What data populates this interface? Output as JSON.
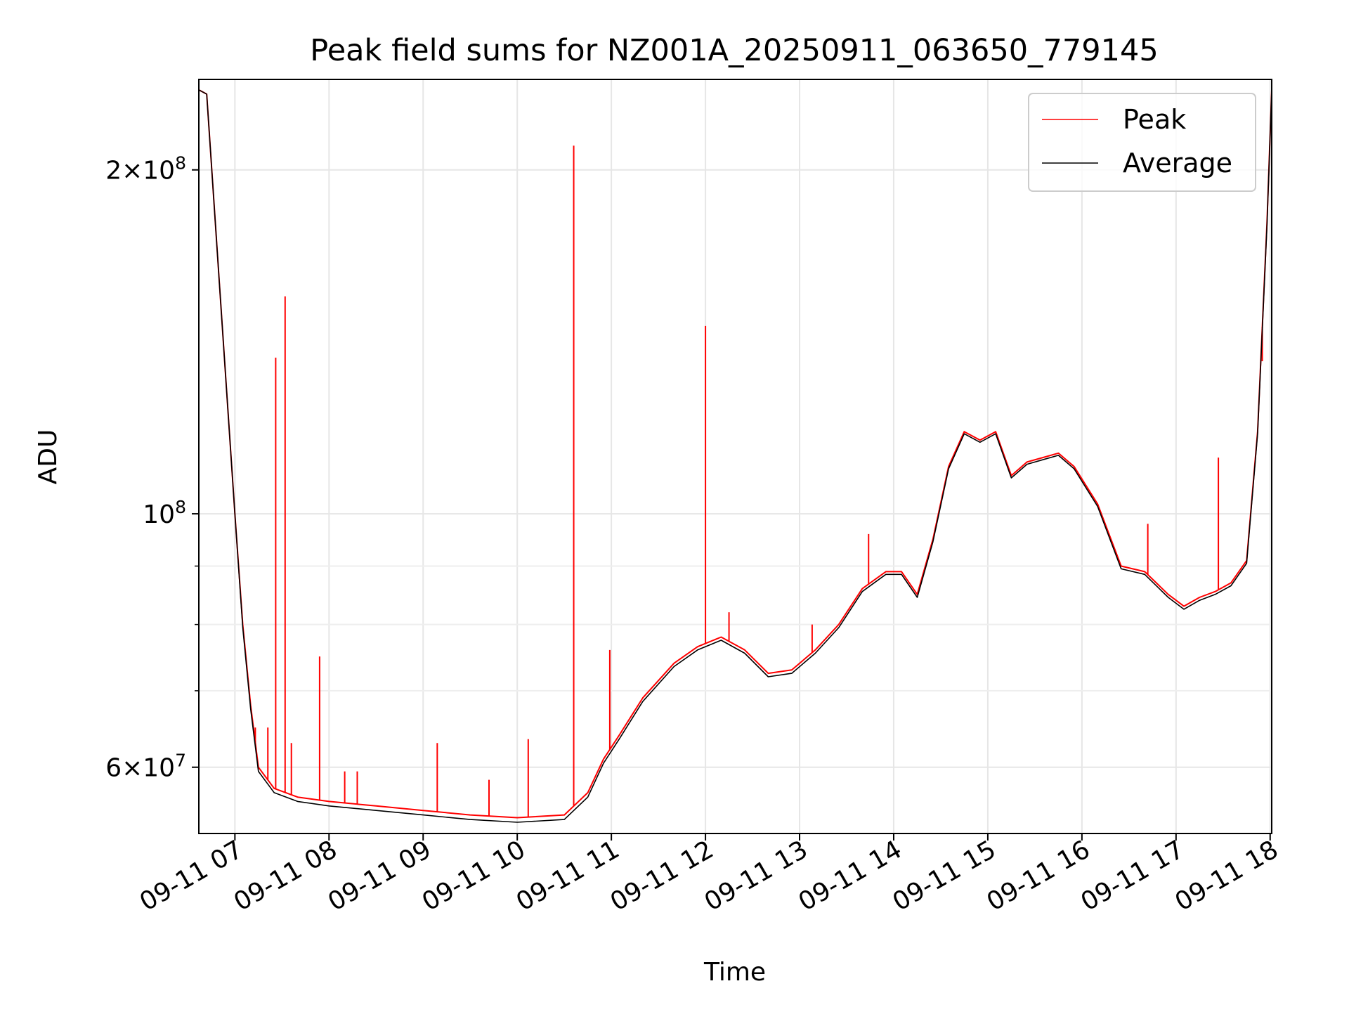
{
  "chart_data": {
    "type": "line",
    "title": "Peak field sums for NZ001A_20250911_063650_779145",
    "xlabel": "Time",
    "ylabel": "ADU",
    "yscale": "log",
    "grid": true,
    "legend_position": "upper-right",
    "xlim": [
      "09-11 06:37",
      "09-11 18:01"
    ],
    "ylim": [
      52500000,
      240000000
    ],
    "x_ticks": [
      "09-11 07",
      "09-11 08",
      "09-11 09",
      "09-11 10",
      "09-11 11",
      "09-11 12",
      "09-11 13",
      "09-11 14",
      "09-11 15",
      "09-11 16",
      "09-11 17",
      "09-11 18"
    ],
    "y_major_ticks": [
      {
        "value": 60000000,
        "mantissa": "6",
        "exponent": "7"
      },
      {
        "value": 100000000,
        "mantissa": "",
        "exponent": "8"
      },
      {
        "value": 200000000,
        "mantissa": "2",
        "exponent": "8"
      }
    ],
    "y_minor_ticks": [
      70000000,
      80000000,
      90000000
    ],
    "series": [
      {
        "name": "Peak",
        "color": "#ff0000",
        "x": [
          "06:37",
          "06:42",
          "06:50",
          "07:00",
          "07:05",
          "07:10",
          "07:15",
          "07:25",
          "07:40",
          "08:00",
          "08:30",
          "09:00",
          "09:30",
          "10:00",
          "10:30",
          "10:45",
          "10:55",
          "11:05",
          "11:20",
          "11:40",
          "11:55",
          "12:10",
          "12:25",
          "12:40",
          "12:55",
          "13:10",
          "13:25",
          "13:40",
          "13:55",
          "14:05",
          "14:15",
          "14:25",
          "14:35",
          "14:45",
          "14:55",
          "15:05",
          "15:15",
          "15:25",
          "15:35",
          "15:45",
          "15:55",
          "16:10",
          "16:25",
          "16:40",
          "16:55",
          "17:05",
          "17:15",
          "17:25",
          "17:35",
          "17:45",
          "17:52",
          "17:58",
          "18:01"
        ],
        "y": [
          235000000,
          233000000,
          160000000,
          100000000,
          80000000,
          68000000,
          60000000,
          57500000,
          56500000,
          56000000,
          55500000,
          55000000,
          54500000,
          54200000,
          54500000,
          57000000,
          61000000,
          64000000,
          69000000,
          74000000,
          76500000,
          78000000,
          76000000,
          72500000,
          73000000,
          76000000,
          80000000,
          86000000,
          89000000,
          89000000,
          85000000,
          95000000,
          110000000,
          118000000,
          116000000,
          118000000,
          108000000,
          111000000,
          112000000,
          113000000,
          110000000,
          102000000,
          90000000,
          89000000,
          85000000,
          83000000,
          84500000,
          85500000,
          87000000,
          91000000,
          118000000,
          180000000,
          235000000
        ]
      },
      {
        "name": "Average",
        "color": "#000000",
        "x": [
          "06:37",
          "06:42",
          "06:50",
          "07:00",
          "07:05",
          "07:10",
          "07:15",
          "07:25",
          "07:40",
          "08:00",
          "08:30",
          "09:00",
          "09:30",
          "10:00",
          "10:30",
          "10:45",
          "10:55",
          "11:05",
          "11:20",
          "11:40",
          "11:55",
          "12:10",
          "12:25",
          "12:40",
          "12:55",
          "13:10",
          "13:25",
          "13:40",
          "13:55",
          "14:05",
          "14:15",
          "14:25",
          "14:35",
          "14:45",
          "14:55",
          "15:05",
          "15:15",
          "15:25",
          "15:35",
          "15:45",
          "15:55",
          "16:10",
          "16:25",
          "16:40",
          "16:55",
          "17:05",
          "17:15",
          "17:25",
          "17:35",
          "17:45",
          "17:52",
          "17:58",
          "18:01"
        ],
        "y": [
          235000000,
          233000000,
          160000000,
          100000000,
          79500000,
          67500000,
          59500000,
          57000000,
          56000000,
          55500000,
          55000000,
          54500000,
          54000000,
          53700000,
          54000000,
          56500000,
          60500000,
          63500000,
          68500000,
          73500000,
          76000000,
          77500000,
          75500000,
          72000000,
          72500000,
          75500000,
          79500000,
          85500000,
          88500000,
          88500000,
          84500000,
          94500000,
          109500000,
          117500000,
          115500000,
          117500000,
          107500000,
          110500000,
          111500000,
          112500000,
          109500000,
          101500000,
          89500000,
          88500000,
          84500000,
          82500000,
          84000000,
          85000000,
          86500000,
          90500000,
          117500000,
          179000000,
          235000000
        ]
      }
    ],
    "spikes": [
      {
        "x": "07:13",
        "y": 65000000
      },
      {
        "x": "07:21",
        "y": 65000000
      },
      {
        "x": "07:26",
        "y": 137000000
      },
      {
        "x": "07:32",
        "y": 155000000
      },
      {
        "x": "07:36",
        "y": 63000000
      },
      {
        "x": "07:54",
        "y": 75000000
      },
      {
        "x": "08:10",
        "y": 59500000
      },
      {
        "x": "08:18",
        "y": 59500000
      },
      {
        "x": "09:09",
        "y": 63000000
      },
      {
        "x": "09:42",
        "y": 58500000
      },
      {
        "x": "10:07",
        "y": 63500000
      },
      {
        "x": "10:36",
        "y": 210000000
      },
      {
        "x": "10:59",
        "y": 76000000
      },
      {
        "x": "12:00",
        "y": 146000000
      },
      {
        "x": "12:15",
        "y": 82000000
      },
      {
        "x": "13:08",
        "y": 80000000
      },
      {
        "x": "13:44",
        "y": 96000000
      },
      {
        "x": "16:42",
        "y": 98000000
      },
      {
        "x": "17:27",
        "y": 112000000
      },
      {
        "x": "17:55",
        "y": 136000000
      }
    ]
  }
}
